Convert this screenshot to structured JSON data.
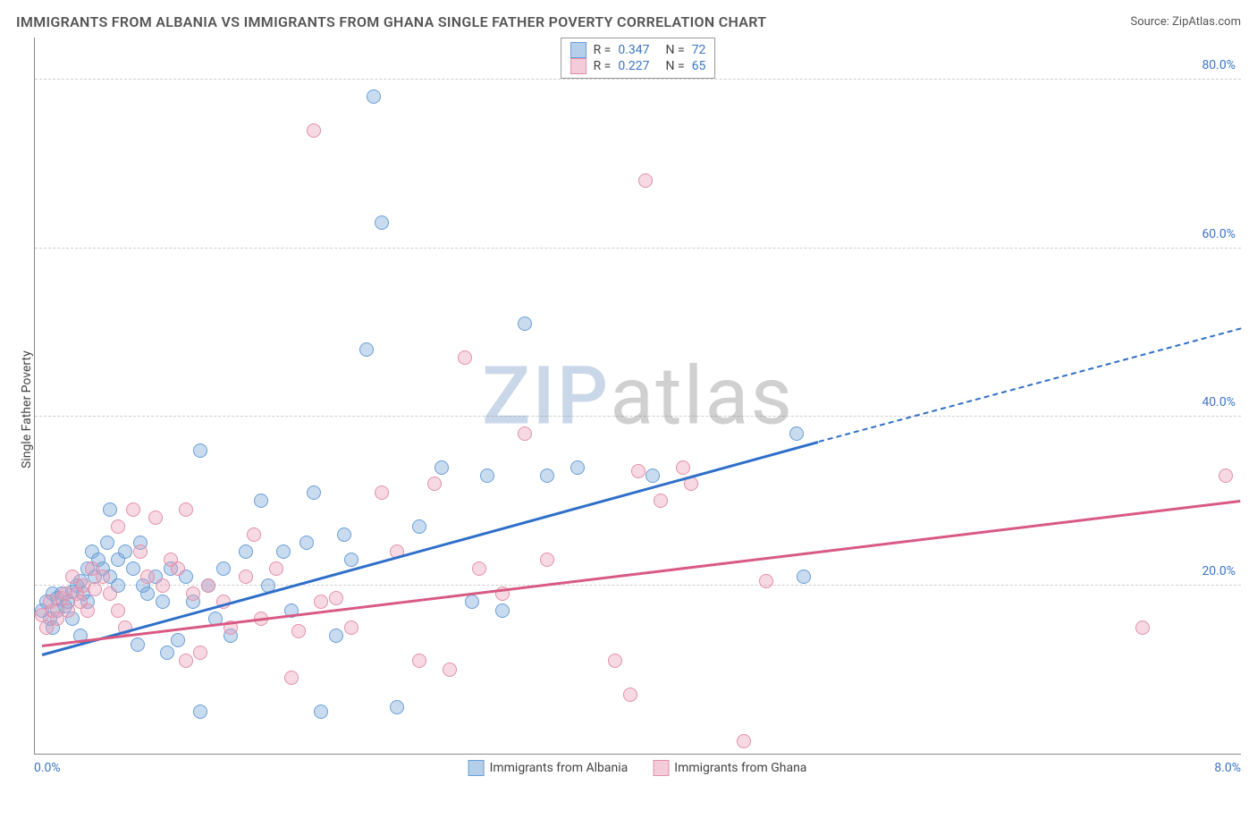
{
  "title": "IMMIGRANTS FROM ALBANIA VS IMMIGRANTS FROM GHANA SINGLE FATHER POVERTY CORRELATION CHART",
  "source": "Source: ZipAtlas.com",
  "y_axis_label": "Single Father Poverty",
  "watermark": {
    "part1": "ZIP",
    "part2": "atlas"
  },
  "chart": {
    "type": "scatter",
    "background_color": "#ffffff",
    "grid_color": "#cccccc",
    "axis_color": "#888888",
    "tick_label_color": "#3b74c4",
    "xlim": [
      0,
      8
    ],
    "ylim": [
      0,
      85
    ],
    "y_ticks": [
      20,
      40,
      60,
      80
    ],
    "y_tick_labels": [
      "20.0%",
      "40.0%",
      "60.0%",
      "80.0%"
    ],
    "x_tick_labels": {
      "min": "0.0%",
      "max": "8.0%"
    },
    "marker_radius": 8,
    "marker_opacity": 0.55,
    "series": [
      {
        "name": "Immigrants from Albania",
        "color_stroke": "#6a9fd8",
        "color_fill": "rgba(120,165,215,0.4)",
        "trend_color": "#2f6fc9",
        "R": "0.347",
        "N": "72",
        "trendline": {
          "x1": 0.05,
          "y1": 17,
          "x2": 5.2,
          "y2": 40.5
        },
        "trendline_dashed": {
          "x1": 5.2,
          "y1": 40.5,
          "x2": 8.0,
          "y2": 53
        },
        "points": [
          [
            0.05,
            17
          ],
          [
            0.08,
            18
          ],
          [
            0.1,
            16
          ],
          [
            0.12,
            19
          ],
          [
            0.12,
            15
          ],
          [
            0.15,
            18.5
          ],
          [
            0.15,
            17
          ],
          [
            0.18,
            19
          ],
          [
            0.2,
            17.5
          ],
          [
            0.22,
            18
          ],
          [
            0.25,
            19.2
          ],
          [
            0.25,
            16
          ],
          [
            0.28,
            20
          ],
          [
            0.3,
            20.5
          ],
          [
            0.3,
            14
          ],
          [
            0.32,
            19
          ],
          [
            0.35,
            18
          ],
          [
            0.35,
            22
          ],
          [
            0.38,
            24
          ],
          [
            0.4,
            21
          ],
          [
            0.42,
            23
          ],
          [
            0.45,
            22
          ],
          [
            0.48,
            25
          ],
          [
            0.5,
            21
          ],
          [
            0.5,
            29
          ],
          [
            0.55,
            20
          ],
          [
            0.55,
            23
          ],
          [
            0.6,
            24
          ],
          [
            0.65,
            22
          ],
          [
            0.68,
            13
          ],
          [
            0.7,
            25
          ],
          [
            0.72,
            20
          ],
          [
            0.75,
            19
          ],
          [
            0.8,
            21
          ],
          [
            0.85,
            18
          ],
          [
            0.88,
            12
          ],
          [
            0.9,
            22
          ],
          [
            0.95,
            13.5
          ],
          [
            1.0,
            21
          ],
          [
            1.05,
            18
          ],
          [
            1.1,
            36
          ],
          [
            1.1,
            5
          ],
          [
            1.15,
            20
          ],
          [
            1.2,
            16
          ],
          [
            1.25,
            22
          ],
          [
            1.3,
            14
          ],
          [
            1.4,
            24
          ],
          [
            1.5,
            30
          ],
          [
            1.55,
            20
          ],
          [
            1.65,
            24
          ],
          [
            1.7,
            17
          ],
          [
            1.8,
            25
          ],
          [
            1.85,
            31
          ],
          [
            1.9,
            5
          ],
          [
            2.0,
            14
          ],
          [
            2.05,
            26
          ],
          [
            2.1,
            23
          ],
          [
            2.2,
            48
          ],
          [
            2.25,
            78
          ],
          [
            2.3,
            63
          ],
          [
            2.4,
            5.5
          ],
          [
            2.55,
            27
          ],
          [
            2.7,
            34
          ],
          [
            2.9,
            18
          ],
          [
            3.0,
            33
          ],
          [
            3.1,
            17
          ],
          [
            3.25,
            51
          ],
          [
            3.4,
            33
          ],
          [
            3.6,
            34
          ],
          [
            4.1,
            33
          ],
          [
            5.05,
            38
          ],
          [
            5.1,
            21
          ]
        ]
      },
      {
        "name": "Immigrants from Ghana",
        "color_stroke": "#e390a8",
        "color_fill": "rgba(235,160,185,0.4)",
        "trend_color": "#d85a82",
        "R": "0.227",
        "N": "65",
        "trendline": {
          "x1": 0.05,
          "y1": 18,
          "x2": 8.0,
          "y2": 34
        },
        "points": [
          [
            0.05,
            16.5
          ],
          [
            0.08,
            15
          ],
          [
            0.1,
            18
          ],
          [
            0.12,
            17
          ],
          [
            0.15,
            16
          ],
          [
            0.18,
            18.5
          ],
          [
            0.2,
            19
          ],
          [
            0.22,
            17
          ],
          [
            0.25,
            21
          ],
          [
            0.28,
            19
          ],
          [
            0.3,
            18
          ],
          [
            0.32,
            20
          ],
          [
            0.35,
            17
          ],
          [
            0.38,
            22
          ],
          [
            0.4,
            19.5
          ],
          [
            0.45,
            21
          ],
          [
            0.5,
            19
          ],
          [
            0.55,
            17
          ],
          [
            0.6,
            15
          ],
          [
            0.65,
            29
          ],
          [
            0.7,
            24
          ],
          [
            0.75,
            21
          ],
          [
            0.8,
            28
          ],
          [
            0.85,
            20
          ],
          [
            0.9,
            23
          ],
          [
            0.95,
            22
          ],
          [
            1.0,
            29
          ],
          [
            1.05,
            19
          ],
          [
            1.1,
            12
          ],
          [
            1.15,
            20
          ],
          [
            1.25,
            18
          ],
          [
            1.3,
            15
          ],
          [
            1.4,
            21
          ],
          [
            1.5,
            16
          ],
          [
            1.6,
            22
          ],
          [
            1.7,
            9
          ],
          [
            1.75,
            14.5
          ],
          [
            1.85,
            74
          ],
          [
            1.9,
            18
          ],
          [
            2.0,
            18.5
          ],
          [
            2.1,
            15
          ],
          [
            2.3,
            31
          ],
          [
            2.4,
            24
          ],
          [
            2.55,
            11
          ],
          [
            2.65,
            32
          ],
          [
            2.75,
            10
          ],
          [
            2.85,
            47
          ],
          [
            2.95,
            22
          ],
          [
            3.1,
            19
          ],
          [
            3.25,
            38
          ],
          [
            3.4,
            23
          ],
          [
            3.85,
            11
          ],
          [
            3.95,
            7
          ],
          [
            4.0,
            33.5
          ],
          [
            4.05,
            68
          ],
          [
            4.15,
            30
          ],
          [
            4.3,
            34
          ],
          [
            4.35,
            32
          ],
          [
            4.7,
            1.5
          ],
          [
            4.85,
            20.5
          ],
          [
            7.35,
            15
          ],
          [
            7.9,
            33
          ],
          [
            0.55,
            27
          ],
          [
            1.0,
            11
          ],
          [
            1.45,
            26
          ]
        ]
      }
    ]
  },
  "bottom_legend": [
    {
      "label": "Immigrants from Albania",
      "fill": "rgba(120,165,215,0.55)",
      "stroke": "#6a9fd8"
    },
    {
      "label": "Immigrants from Ghana",
      "fill": "rgba(235,160,185,0.55)",
      "stroke": "#e390a8"
    }
  ]
}
